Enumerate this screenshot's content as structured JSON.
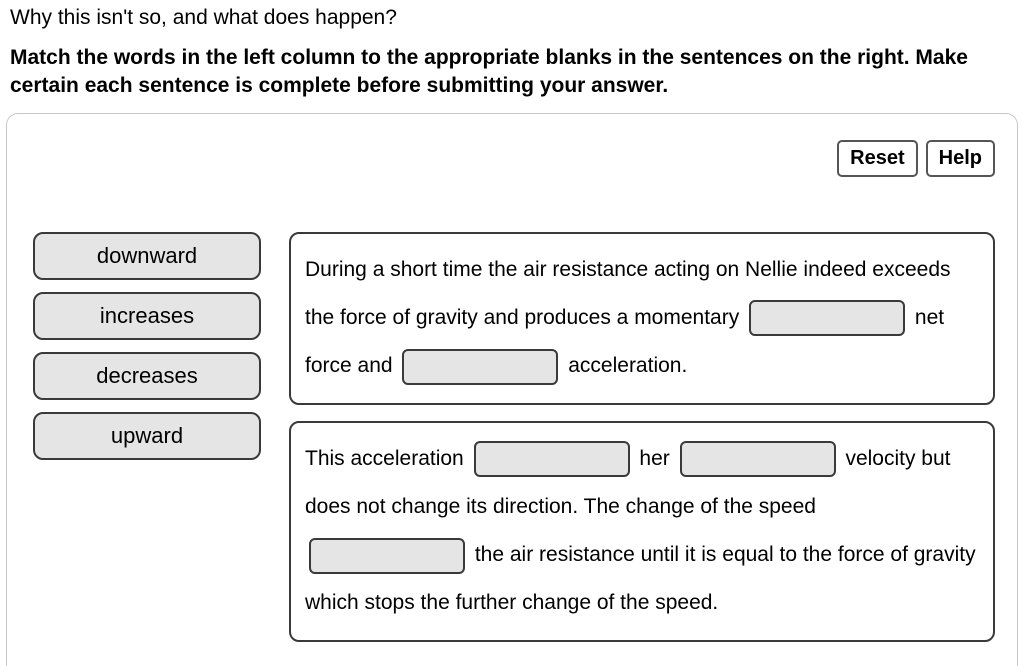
{
  "header": {
    "question": "Why this isn't so, and what does happen?",
    "instruction": "Match the words in the left column to the appropriate blanks in the sentences on the right. Make certain each sentence is complete before submitting your answer."
  },
  "buttons": {
    "reset": "Reset",
    "help": "Help"
  },
  "words": {
    "w1": "downward",
    "w2": "increases",
    "w3": "decreases",
    "w4": "upward"
  },
  "sentences": {
    "s1_part1": "During a short time the air resistance acting on Nellie indeed exceeds the force of gravity and produces a momentary ",
    "s1_part2": " net force and ",
    "s1_part3": " acceleration.",
    "s2_part1": "This acceleration ",
    "s2_part2": " her ",
    "s2_part3": " velocity but does not change its direction. The change of the speed ",
    "s2_part4": " the air resistance until it is equal to the force of gravity which stops the further change of the speed."
  },
  "colors": {
    "panel_border": "#c8c8c8",
    "element_border": "#3a3a3a",
    "fill_grey": "#e5e5e5",
    "text": "#000000",
    "background": "#ffffff"
  }
}
